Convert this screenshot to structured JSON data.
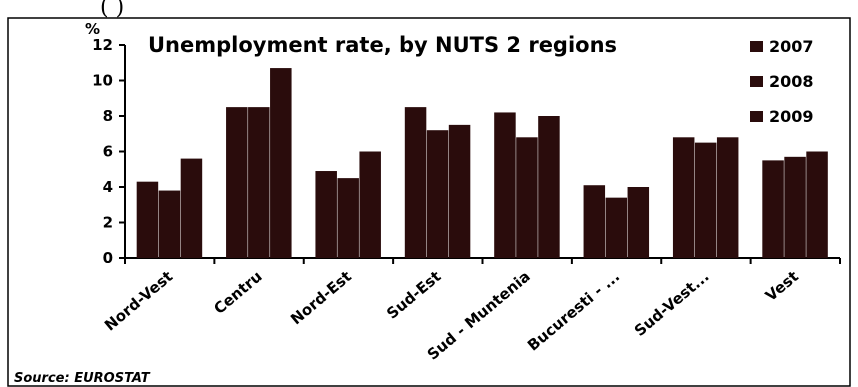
{
  "header_fragment": "(                      )",
  "source": "Source: EUROSTAT",
  "chart_data": {
    "type": "bar",
    "title": "Unemployment rate, by NUTS 2 regions",
    "ylabel": "%",
    "xlabel": "",
    "ylim": [
      0,
      12
    ],
    "yticks": [
      0,
      2,
      4,
      6,
      8,
      10,
      12
    ],
    "grid": false,
    "legend_position": "top-right",
    "categories": [
      "Nord-Vest",
      "Centru",
      "Nord-Est",
      "Sud-Est",
      "Sud - Muntenia",
      "Bucuresti - ...",
      "Sud-Vest...",
      "Vest"
    ],
    "series": [
      {
        "name": "2007",
        "color": "#2a0c0c",
        "values": [
          4.3,
          8.5,
          4.9,
          8.5,
          8.2,
          4.1,
          6.8,
          5.5
        ]
      },
      {
        "name": "2008",
        "color": "#2a0c0c",
        "values": [
          3.8,
          8.5,
          4.5,
          7.2,
          6.8,
          3.4,
          6.5,
          5.7
        ]
      },
      {
        "name": "2009",
        "color": "#2a0c0c",
        "values": [
          5.6,
          10.7,
          6.0,
          7.5,
          8.0,
          4.0,
          6.8,
          6.0
        ]
      }
    ]
  }
}
